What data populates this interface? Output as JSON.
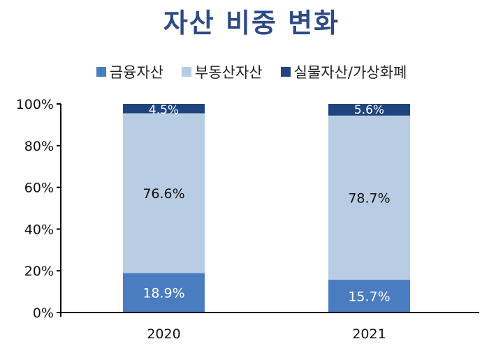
{
  "chart_data": {
    "type": "bar",
    "stacked": true,
    "title": "자산 비중 변화",
    "categories": [
      "2020",
      "2021"
    ],
    "series": [
      {
        "name": "금융자산",
        "values": [
          18.9,
          15.7
        ],
        "color": "#4a7dbf",
        "label_color": "#ffffff"
      },
      {
        "name": "부동산자산",
        "values": [
          76.6,
          78.7
        ],
        "color": "#b8cce4",
        "label_color": "#111111"
      },
      {
        "name": "실물자산/가상화폐",
        "values": [
          4.5,
          5.6
        ],
        "color": "#1f4480",
        "label_color": "#ffffff"
      }
    ],
    "ylim": [
      0,
      100
    ],
    "yticks": [
      0,
      20,
      40,
      60,
      80,
      100
    ],
    "ytick_labels": [
      "0%",
      "20%",
      "40%",
      "60%",
      "80%",
      "100%"
    ],
    "xlabel": "",
    "ylabel": "",
    "legend": "top",
    "grid": false
  }
}
